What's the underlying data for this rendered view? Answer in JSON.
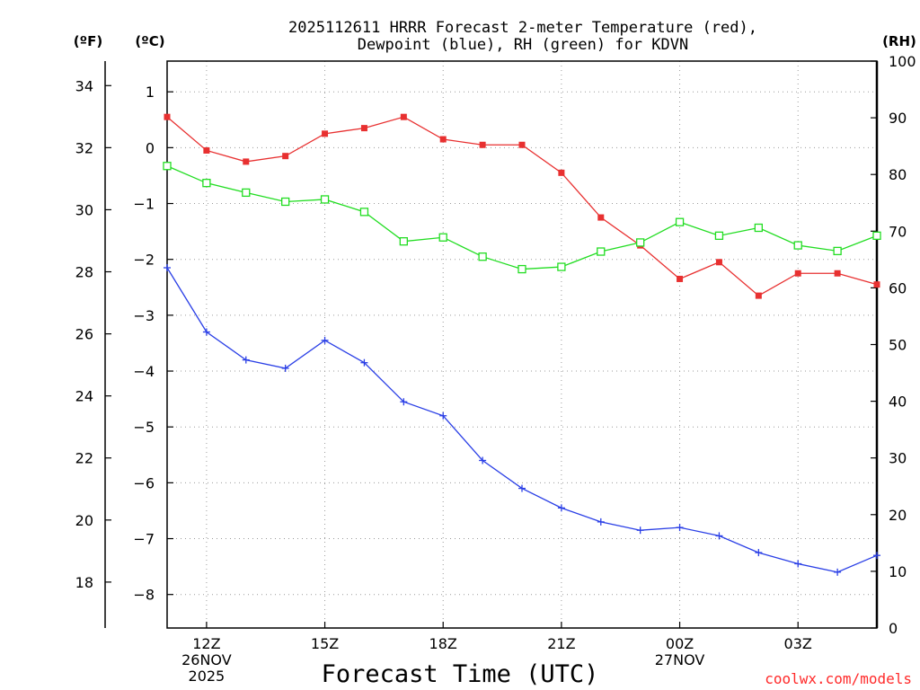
{
  "chart_data": {
    "type": "line",
    "title_line1": "2025112611 HRRR Forecast 2-meter Temperature (red),",
    "title_line2": "Dewpoint (blue), RH (green) for KDVN",
    "unit_f": "(ºF)",
    "unit_c": "(ºC)",
    "unit_rh": "(RH)",
    "xlabel": "Forecast Time (UTC)",
    "credit": "coolwx.com/models",
    "x_hours": [
      11,
      12,
      13,
      14,
      15,
      16,
      17,
      18,
      19,
      20,
      21,
      22,
      23,
      24,
      25,
      26,
      27,
      28,
      29
    ],
    "x_ticks": [
      {
        "hour": 12,
        "lines": [
          "12Z",
          "26NOV",
          "2025"
        ]
      },
      {
        "hour": 15,
        "lines": [
          "15Z"
        ]
      },
      {
        "hour": 18,
        "lines": [
          "18Z"
        ]
      },
      {
        "hour": 21,
        "lines": [
          "21Z"
        ]
      },
      {
        "hour": 24,
        "lines": [
          "00Z",
          "27NOV"
        ]
      },
      {
        "hour": 27,
        "lines": [
          "03Z"
        ]
      }
    ],
    "xlim": [
      11,
      29
    ],
    "ylim_c": [
      -8.6,
      1.55
    ],
    "yticks_c": [
      "-8",
      "-7",
      "-6",
      "-5",
      "-4",
      "-3",
      "-2",
      "-1",
      "0",
      "1"
    ],
    "yticks_f": [
      "18",
      "20",
      "22",
      "24",
      "26",
      "28",
      "30",
      "32",
      "34"
    ],
    "yticks_rh": [
      "0",
      "10",
      "20",
      "30",
      "40",
      "50",
      "60",
      "70",
      "80",
      "90",
      "100"
    ],
    "ylim_rh": [
      0,
      100
    ],
    "series": [
      {
        "name": "Temperature",
        "unit": "C",
        "color": "#e83030",
        "marker": "filled-square",
        "values": [
          0.55,
          -0.05,
          -0.25,
          -0.15,
          0.25,
          0.35,
          0.55,
          0.15,
          0.05,
          0.05,
          -0.45,
          -1.25,
          -1.75,
          -2.35,
          -2.05,
          -2.65,
          -2.25,
          -2.25,
          -2.45
        ]
      },
      {
        "name": "Dewpoint",
        "unit": "C",
        "color": "#2a3fe6",
        "marker": "plus",
        "values": [
          -2.15,
          -3.3,
          -3.8,
          -3.95,
          -3.45,
          -3.85,
          -4.55,
          -4.8,
          -5.6,
          -6.1,
          -6.45,
          -6.7,
          -6.85,
          -6.8,
          -6.95,
          -7.25,
          -7.45,
          -7.6,
          -7.3
        ]
      },
      {
        "name": "RH",
        "unit": "%",
        "color": "#22dd22",
        "marker": "open-square",
        "values": [
          81.5,
          78.5,
          76.8,
          75.2,
          75.6,
          73.4,
          68.2,
          68.9,
          65.5,
          63.3,
          63.7,
          66.4,
          68.0,
          71.6,
          69.2,
          70.6,
          67.5,
          66.5,
          69.2
        ]
      }
    ]
  }
}
